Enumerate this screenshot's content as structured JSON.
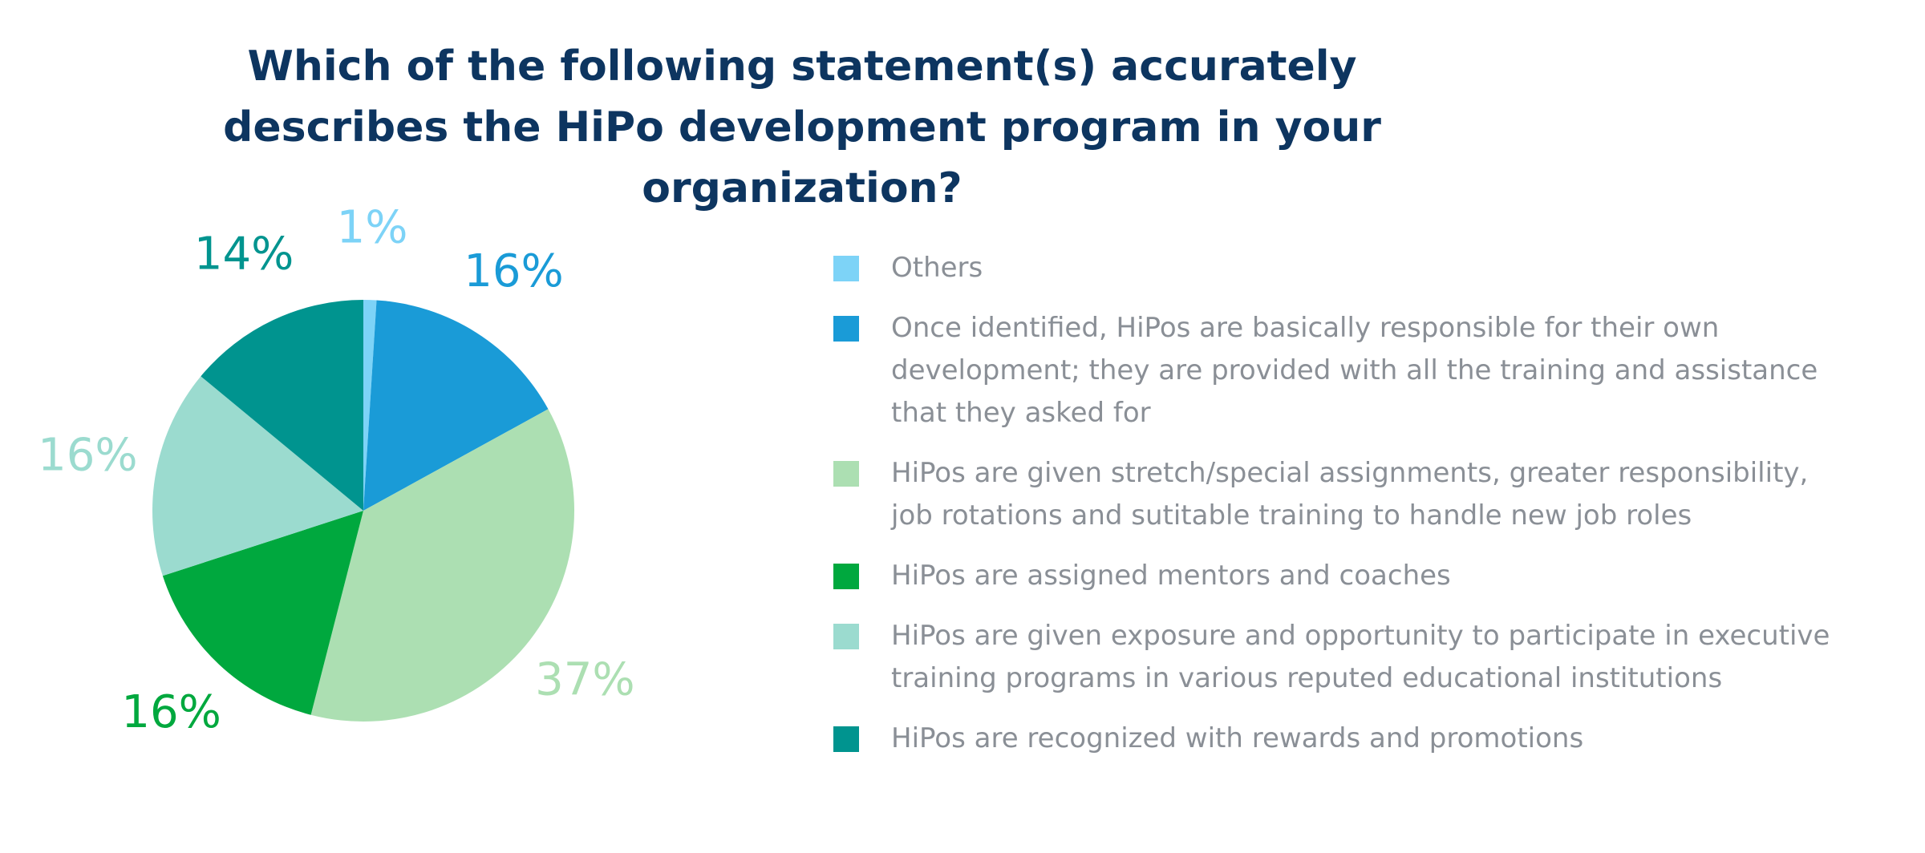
{
  "chart_data": {
    "type": "pie",
    "title": "Which of the following statement(s) accurately describes the HiPo development program in your organization?",
    "categories": [
      "Others",
      "Once identified, HiPos are basically responsible for their own development; they are provided with all the training and assistance that they asked for",
      "HiPos are given stretch/special assignments, greater responsibility, job rotations and sutitable training to handle new job roles",
      "HiPos are assigned mentors and coaches",
      "HiPos are given exposure and opportunity to participate in executive training programs in various reputed educational institutions",
      "HiPos are recognized with rewards and promotions"
    ],
    "values": [
      1,
      16,
      37,
      16,
      16,
      14
    ],
    "value_labels": [
      "1%",
      "16%",
      "37%",
      "16%",
      "16%",
      "14%"
    ],
    "colors": [
      "#7dd3f7",
      "#1a9bd7",
      "#acdfb2",
      "#00a83e",
      "#9bdbcf",
      "#00948f"
    ]
  }
}
